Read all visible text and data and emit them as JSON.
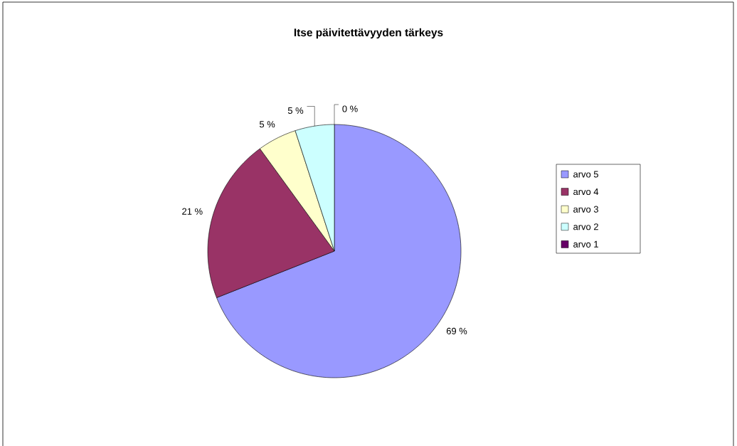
{
  "chart_data": {
    "type": "pie",
    "title": "Itse päivitettävyyden tärkeys",
    "categories": [
      "arvo 5",
      "arvo 4",
      "arvo 3",
      "arvo 2",
      "arvo 1"
    ],
    "values": [
      69,
      21,
      5,
      5,
      0
    ],
    "colors": [
      "#9999ff",
      "#993366",
      "#ffffcc",
      "#ccffff",
      "#660066"
    ],
    "value_labels": [
      "69 %",
      "21 %",
      "5 %",
      "5 %",
      "0 %"
    ],
    "legend": "right"
  }
}
